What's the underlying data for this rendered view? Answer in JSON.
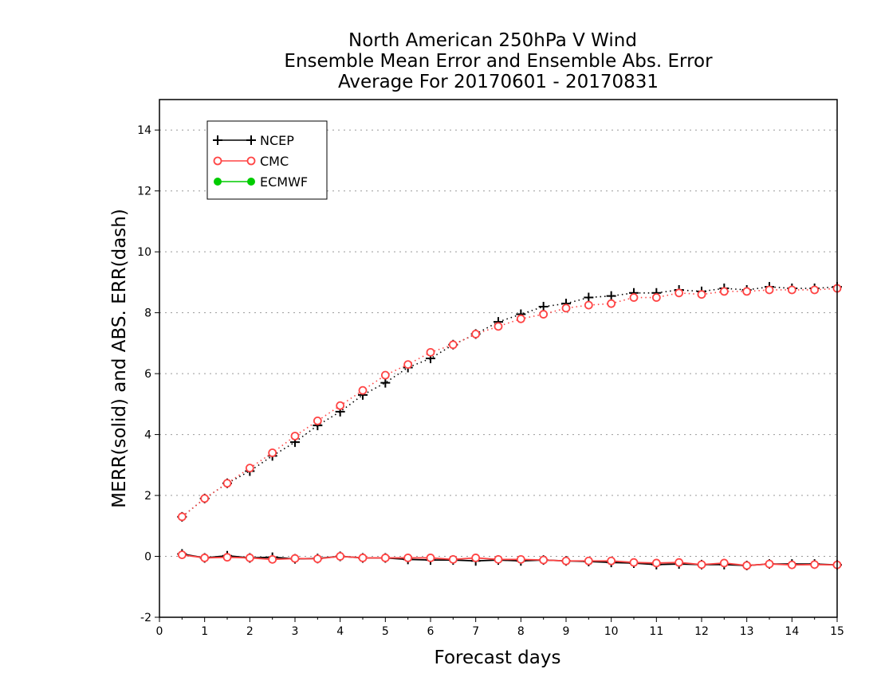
{
  "chart_data": {
    "type": "line",
    "title": [
      "North American 250hPa V Wind",
      "Ensemble Mean Error and Ensemble Abs. Error",
      "Average For 20170601 - 20170831"
    ],
    "xlabel": "Forecast days",
    "ylabel": "MERR(solid) and ABS. ERR(dash)",
    "xlim": [
      0,
      15
    ],
    "ylim": [
      -2,
      15
    ],
    "x_ticks": [
      0,
      1,
      2,
      3,
      4,
      5,
      6,
      7,
      8,
      9,
      10,
      11,
      12,
      13,
      14,
      15
    ],
    "y_ticks": [
      -2,
      0,
      2,
      4,
      6,
      8,
      10,
      12,
      14
    ],
    "grid": "horizontal dotted",
    "legend_position": "top-left",
    "x": [
      0.5,
      1,
      1.5,
      2,
      2.5,
      3,
      3.5,
      4,
      4.5,
      5,
      5.5,
      6,
      6.5,
      7,
      7.5,
      8,
      8.5,
      9,
      9.5,
      10,
      10.5,
      11,
      11.5,
      12,
      12.5,
      13,
      13.5,
      14,
      14.5,
      15
    ],
    "series": [
      {
        "name": "NCEP",
        "color": "#000000",
        "marker": "plus",
        "abs_err": [
          1.3,
          1.9,
          2.4,
          2.8,
          3.3,
          3.75,
          4.3,
          4.75,
          5.3,
          5.7,
          6.2,
          6.5,
          6.95,
          7.3,
          7.7,
          7.95,
          8.2,
          8.3,
          8.5,
          8.55,
          8.65,
          8.65,
          8.75,
          8.7,
          8.8,
          8.75,
          8.85,
          8.8,
          8.8,
          8.85
        ],
        "mean_err": [
          0.08,
          -0.05,
          0.02,
          -0.05,
          -0.03,
          -0.08,
          -0.07,
          0.0,
          -0.05,
          -0.05,
          -0.1,
          -0.12,
          -0.12,
          -0.15,
          -0.12,
          -0.15,
          -0.12,
          -0.15,
          -0.17,
          -0.2,
          -0.22,
          -0.27,
          -0.25,
          -0.27,
          -0.27,
          -0.3,
          -0.25,
          -0.25,
          -0.25,
          -0.28
        ]
      },
      {
        "name": "CMC",
        "color": "#ff4444",
        "marker": "open-circle",
        "abs_err": [
          1.3,
          1.9,
          2.4,
          2.9,
          3.4,
          3.95,
          4.45,
          4.95,
          5.45,
          5.95,
          6.3,
          6.7,
          6.95,
          7.3,
          7.55,
          7.8,
          7.95,
          8.15,
          8.25,
          8.3,
          8.5,
          8.5,
          8.65,
          8.6,
          8.7,
          8.7,
          8.75,
          8.75,
          8.75,
          8.8
        ],
        "mean_err": [
          0.05,
          -0.05,
          -0.03,
          -0.05,
          -0.1,
          -0.07,
          -0.08,
          0.0,
          -0.05,
          -0.05,
          -0.05,
          -0.05,
          -0.1,
          -0.05,
          -0.1,
          -0.1,
          -0.12,
          -0.15,
          -0.15,
          -0.15,
          -0.2,
          -0.22,
          -0.2,
          -0.27,
          -0.22,
          -0.3,
          -0.25,
          -0.28,
          -0.27,
          -0.28
        ]
      },
      {
        "name": "ECMWF",
        "color": "#00cc00",
        "marker": "filled-circle",
        "abs_err": [],
        "mean_err": []
      }
    ]
  }
}
